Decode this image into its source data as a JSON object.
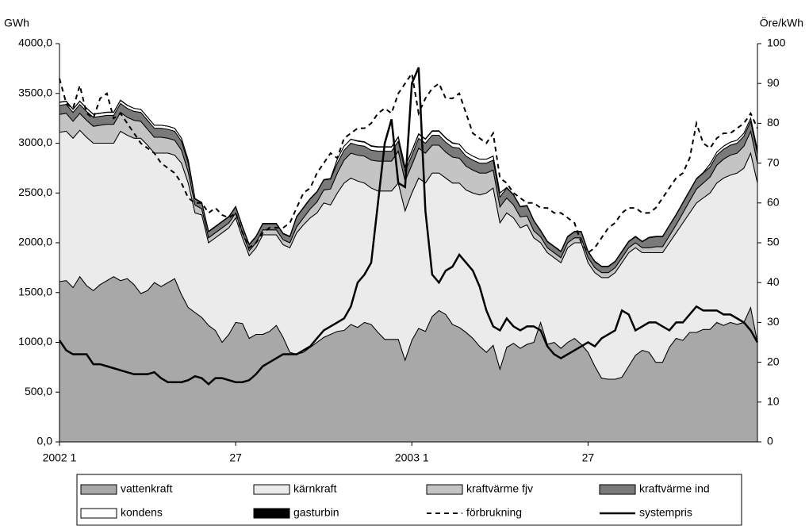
{
  "chart_data": {
    "type": "area",
    "stacked": true,
    "y_label": "GWh",
    "y2_label": "Öre/kWh",
    "categories": [
      "2002 1",
      null,
      null,
      null,
      null,
      null,
      null,
      null,
      null,
      null,
      null,
      null,
      null,
      null,
      null,
      null,
      null,
      null,
      null,
      null,
      null,
      null,
      null,
      null,
      null,
      null,
      "27",
      null,
      null,
      null,
      null,
      null,
      null,
      null,
      null,
      null,
      null,
      null,
      null,
      null,
      null,
      null,
      null,
      null,
      null,
      null,
      null,
      null,
      null,
      null,
      null,
      null,
      "2003 1",
      null,
      null,
      null,
      null,
      null,
      null,
      null,
      null,
      null,
      null,
      null,
      null,
      null,
      null,
      null,
      null,
      null,
      null,
      null,
      null,
      null,
      null,
      null,
      null,
      null,
      "27",
      null,
      null,
      null,
      null,
      null,
      null,
      null,
      null,
      null,
      null,
      null,
      null,
      null,
      null,
      null,
      null,
      null,
      null,
      null,
      null,
      null,
      null,
      null,
      null,
      null
    ],
    "ylim": [
      0,
      4000
    ],
    "yticks": [
      {
        "value": 0,
        "label": "0,0"
      },
      {
        "value": 500,
        "label": "500,0"
      },
      {
        "value": 1000,
        "label": "1000,0"
      },
      {
        "value": 1500,
        "label": "1500,0"
      },
      {
        "value": 2000,
        "label": "2000,0"
      },
      {
        "value": 2500,
        "label": "2500,0"
      },
      {
        "value": 3000,
        "label": "3000,0"
      },
      {
        "value": 3500,
        "label": "3500,0"
      },
      {
        "value": 4000,
        "label": "4000,0"
      }
    ],
    "y2lim": [
      0,
      100
    ],
    "y2ticks": [
      0,
      10,
      20,
      30,
      40,
      50,
      60,
      70,
      80,
      90,
      100
    ],
    "series": [
      {
        "name": "vattenkraft",
        "type": "area",
        "color": "#a8a8a8",
        "values": [
          1610,
          1620,
          1550,
          1660,
          1570,
          1520,
          1580,
          1620,
          1660,
          1620,
          1640,
          1580,
          1490,
          1520,
          1600,
          1560,
          1600,
          1640,
          1480,
          1350,
          1300,
          1250,
          1170,
          1120,
          1000,
          1080,
          1200,
          1190,
          1040,
          1080,
          1080,
          1110,
          1170,
          1050,
          900,
          880,
          900,
          950,
          1000,
          1050,
          1080,
          1110,
          1120,
          1180,
          1150,
          1200,
          1180,
          1100,
          1030,
          1030,
          1030,
          820,
          1020,
          1140,
          1110,
          1260,
          1320,
          1280,
          1180,
          1150,
          1100,
          1040,
          960,
          900,
          970,
          730,
          950,
          990,
          940,
          980,
          1000,
          1200,
          980,
          1000,
          940,
          1000,
          1040,
          980,
          900,
          760,
          640,
          630,
          630,
          650,
          760,
          870,
          920,
          900,
          800,
          800,
          950,
          1040,
          1020,
          1100,
          1100,
          1130,
          1130,
          1200,
          1170,
          1200,
          1180,
          1200,
          1350,
          1000
        ]
      },
      {
        "name": "kärnkraft",
        "type": "area",
        "color": "#ebebeb",
        "values": [
          1500,
          1500,
          1500,
          1470,
          1490,
          1480,
          1420,
          1380,
          1340,
          1500,
          1440,
          1470,
          1560,
          1460,
          1300,
          1340,
          1300,
          1240,
          1320,
          1250,
          1000,
          1030,
          830,
          930,
          1100,
          1070,
          1050,
          860,
          830,
          870,
          1000,
          970,
          910,
          930,
          1050,
          1220,
          1280,
          1300,
          1300,
          1350,
          1300,
          1390,
          1480,
          1470,
          1470,
          1400,
          1370,
          1420,
          1490,
          1490,
          1570,
          1500,
          1480,
          1510,
          1490,
          1440,
          1380,
          1370,
          1420,
          1450,
          1430,
          1460,
          1520,
          1600,
          1580,
          1470,
          1350,
          1260,
          1210,
          1200,
          1050,
          800,
          920,
          850,
          860,
          950,
          960,
          1020,
          900,
          940,
          1010,
          1020,
          1070,
          1150,
          1140,
          1080,
          980,
          1000,
          1100,
          1100,
          1050,
          1060,
          1180,
          1200,
          1300,
          1320,
          1370,
          1400,
          1480,
          1480,
          1520,
          1550,
          1550,
          1600
        ]
      },
      {
        "name": "kraftvärme fjv",
        "type": "area",
        "color": "#c4c4c4",
        "values": [
          180,
          180,
          170,
          170,
          170,
          170,
          180,
          190,
          190,
          190,
          180,
          180,
          170,
          160,
          160,
          160,
          150,
          150,
          130,
          110,
          80,
          60,
          50,
          50,
          50,
          50,
          50,
          50,
          50,
          50,
          50,
          50,
          50,
          50,
          50,
          60,
          70,
          90,
          110,
          130,
          160,
          200,
          230,
          250,
          260,
          270,
          280,
          300,
          300,
          300,
          320,
          300,
          280,
          300,
          300,
          280,
          280,
          260,
          260,
          250,
          240,
          230,
          220,
          200,
          180,
          160,
          150,
          130,
          110,
          90,
          70,
          60,
          50,
          50,
          50,
          50,
          50,
          50,
          50,
          50,
          50,
          50,
          50,
          50,
          50,
          50,
          50,
          50,
          60,
          60,
          70,
          80,
          100,
          120,
          140,
          150,
          160,
          180,
          190,
          200,
          200,
          220,
          220,
          200
        ]
      },
      {
        "name": "kraftvärme ind",
        "type": "area",
        "color": "#7a7a7a",
        "values": [
          90,
          90,
          90,
          90,
          90,
          90,
          90,
          90,
          90,
          90,
          90,
          90,
          90,
          90,
          90,
          90,
          90,
          90,
          90,
          90,
          60,
          60,
          60,
          60,
          60,
          60,
          60,
          60,
          60,
          60,
          60,
          60,
          60,
          60,
          60,
          100,
          100,
          100,
          100,
          100,
          100,
          100,
          100,
          100,
          100,
          100,
          100,
          100,
          100,
          100,
          100,
          100,
          100,
          100,
          100,
          100,
          100,
          100,
          100,
          100,
          100,
          100,
          100,
          100,
          100,
          100,
          100,
          100,
          100,
          100,
          100,
          60,
          60,
          60,
          60,
          60,
          60,
          60,
          60,
          60,
          60,
          60,
          60,
          60,
          60,
          60,
          60,
          100,
          100,
          100,
          100,
          100,
          100,
          100,
          100,
          100,
          100,
          100,
          100,
          100,
          100,
          100,
          100,
          100
        ]
      },
      {
        "name": "kondens",
        "type": "area",
        "color": "#ffffff",
        "values": [
          30,
          30,
          30,
          30,
          30,
          30,
          30,
          30,
          30,
          30,
          30,
          30,
          30,
          30,
          30,
          30,
          30,
          30,
          30,
          30,
          5,
          5,
          5,
          5,
          5,
          5,
          5,
          5,
          5,
          5,
          5,
          5,
          5,
          5,
          5,
          5,
          5,
          5,
          5,
          5,
          5,
          40,
          40,
          40,
          40,
          40,
          40,
          40,
          40,
          40,
          40,
          40,
          40,
          40,
          40,
          40,
          40,
          40,
          40,
          40,
          40,
          40,
          40,
          40,
          40,
          40,
          5,
          5,
          5,
          5,
          5,
          5,
          5,
          5,
          5,
          5,
          5,
          5,
          5,
          5,
          5,
          5,
          5,
          5,
          5,
          5,
          5,
          5,
          5,
          5,
          5,
          5,
          5,
          5,
          5,
          5,
          30,
          30,
          30,
          30,
          30,
          30,
          30,
          30
        ]
      },
      {
        "name": "gasturbin",
        "type": "area",
        "color": "#000000",
        "values": [
          3,
          3,
          3,
          3,
          3,
          3,
          3,
          3,
          3,
          3,
          3,
          0,
          0,
          0,
          0,
          0,
          0,
          0,
          0,
          0,
          0,
          0,
          0,
          0,
          0,
          0,
          0,
          0,
          0,
          0,
          0,
          0,
          0,
          0,
          0,
          0,
          0,
          0,
          0,
          0,
          0,
          0,
          0,
          0,
          5,
          5,
          5,
          5,
          5,
          5,
          5,
          5,
          5,
          5,
          5,
          5,
          5,
          5,
          5,
          0,
          0,
          0,
          0,
          0,
          0,
          0,
          0,
          0,
          0,
          0,
          0,
          0,
          0,
          0,
          0,
          0,
          0,
          0,
          0,
          0,
          0,
          0,
          0,
          0,
          0,
          0,
          0,
          0,
          0,
          0,
          0,
          0,
          0,
          0,
          0,
          0,
          0,
          0,
          0,
          0,
          0,
          0,
          0,
          0
        ]
      },
      {
        "name": "förbrukning",
        "type": "line",
        "dashed": true,
        "color": "#000000",
        "values": [
          3650,
          3400,
          3350,
          3580,
          3300,
          3250,
          3450,
          3500,
          3250,
          3300,
          3200,
          3100,
          3000,
          2950,
          2900,
          2800,
          2750,
          2700,
          2600,
          2450,
          2400,
          2400,
          2300,
          2350,
          2280,
          2250,
          2300,
          2100,
          1950,
          2000,
          2100,
          2150,
          2150,
          2150,
          2200,
          2350,
          2500,
          2550,
          2700,
          2800,
          2900,
          2850,
          3050,
          3100,
          3150,
          3150,
          3200,
          3300,
          3350,
          3300,
          3500,
          3600,
          3700,
          3300,
          3450,
          3550,
          3600,
          3450,
          3450,
          3500,
          3300,
          3100,
          3050,
          3000,
          3100,
          2650,
          2600,
          2500,
          2450,
          2400,
          2400,
          2350,
          2350,
          2300,
          2300,
          2250,
          2200,
          2000,
          1900,
          1950,
          2050,
          2150,
          2200,
          2300,
          2350,
          2350,
          2300,
          2300,
          2350,
          2450,
          2550,
          2650,
          2700,
          2850,
          3200,
          3000,
          2950,
          3050,
          3100,
          3100,
          3150,
          3200,
          3300,
          3150
        ]
      },
      {
        "name": "systempris",
        "type": "line",
        "axis": "y2",
        "color": "#000000",
        "values": [
          25.5,
          23,
          22,
          22,
          22,
          19.5,
          19.5,
          19,
          18.5,
          18,
          17.5,
          17,
          17,
          17,
          17.5,
          16,
          15,
          15,
          15,
          15.5,
          16.5,
          16,
          14.5,
          16,
          16,
          15.5,
          15,
          15,
          15.5,
          17,
          19,
          20,
          21,
          22,
          22,
          22,
          23,
          24,
          26,
          28,
          29,
          30,
          31,
          34,
          40,
          42,
          45,
          60,
          75,
          81,
          65,
          64,
          90,
          94,
          58,
          42,
          40,
          43,
          44,
          47,
          45,
          43,
          39,
          33,
          29,
          28,
          31,
          29,
          28,
          29,
          29,
          28,
          24,
          22,
          21,
          22,
          23,
          24,
          25,
          24,
          26,
          27,
          28,
          33,
          32,
          28,
          29,
          30,
          30,
          29,
          28,
          30,
          30,
          32,
          34,
          33,
          33,
          33,
          32,
          32,
          31,
          30,
          28,
          25
        ]
      }
    ]
  }
}
